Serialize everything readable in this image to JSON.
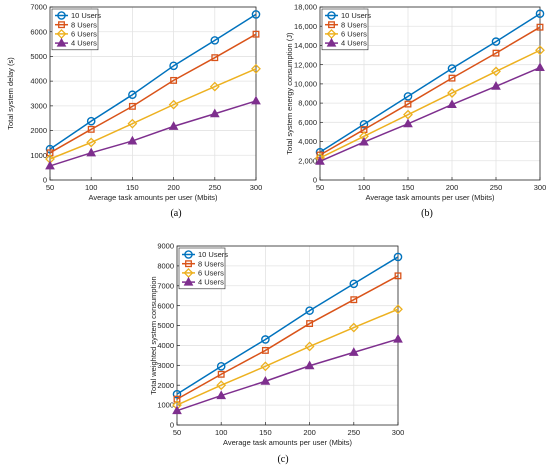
{
  "series_style": [
    {
      "color": "#0072BD",
      "marker": "circle"
    },
    {
      "color": "#D95319",
      "marker": "square"
    },
    {
      "color": "#EDB120",
      "marker": "diamond"
    },
    {
      "color": "#7E2F8E",
      "marker": "triangle"
    }
  ],
  "chart_data": [
    {
      "panel": "a",
      "caption": "(a)",
      "type": "line",
      "xlabel": "Average task amounts per user (Mbits)",
      "ylabel": "Total system delay (s)",
      "xlim": [
        50,
        300
      ],
      "ylim": [
        0,
        7000
      ],
      "xticks": [
        50,
        100,
        150,
        200,
        250,
        300
      ],
      "yticks": [
        0,
        1000,
        2000,
        3000,
        4000,
        5000,
        6000,
        7000
      ],
      "ytick_labels": [
        "0",
        "1000",
        "2000",
        "3000",
        "4000",
        "5000",
        "6000",
        "7000"
      ],
      "grid": true,
      "legend": "top-left",
      "x": [
        50,
        100,
        150,
        200,
        250,
        300
      ],
      "series": [
        {
          "name": "10 Users",
          "values": [
            1250,
            2380,
            3450,
            4620,
            5650,
            6700
          ]
        },
        {
          "name": "8 Users",
          "values": [
            1100,
            2050,
            2980,
            4030,
            4950,
            5900
          ]
        },
        {
          "name": "6 Users",
          "values": [
            850,
            1520,
            2280,
            3050,
            3780,
            4500
          ]
        },
        {
          "name": "4 Users",
          "values": [
            570,
            1100,
            1580,
            2170,
            2680,
            3200
          ]
        }
      ]
    },
    {
      "panel": "b",
      "caption": "(b)",
      "type": "line",
      "xlabel": "Average task amounts per user (Mbits)",
      "ylabel": "Total system energy consumption (J)",
      "xlim": [
        50,
        300
      ],
      "ylim": [
        0,
        18000
      ],
      "xticks": [
        50,
        100,
        150,
        200,
        250,
        300
      ],
      "yticks": [
        0,
        2000,
        4000,
        6000,
        8000,
        10000,
        12000,
        14000,
        16000,
        18000
      ],
      "ytick_labels": [
        "0",
        "2,000",
        "4,000",
        "6,000",
        "8,000",
        "10,000",
        "12,000",
        "14,000",
        "16,000",
        "18,000"
      ],
      "grid": true,
      "legend": "top-left",
      "x": [
        50,
        100,
        150,
        200,
        250,
        300
      ],
      "series": [
        {
          "name": "10 Users",
          "values": [
            2900,
            5800,
            8700,
            11600,
            14400,
            17300
          ]
        },
        {
          "name": "8 Users",
          "values": [
            2600,
            5250,
            7900,
            10600,
            13200,
            15900
          ]
        },
        {
          "name": "6 Users",
          "values": [
            2300,
            4550,
            6800,
            9050,
            11300,
            13500
          ]
        },
        {
          "name": "4 Users",
          "values": [
            1950,
            3950,
            5850,
            7850,
            9750,
            11700
          ]
        }
      ]
    },
    {
      "panel": "c",
      "caption": "(c)",
      "type": "line",
      "xlabel": "Average task amounts per user (Mbits)",
      "ylabel": "Total weighted system consumption",
      "xlim": [
        50,
        300
      ],
      "ylim": [
        0,
        9000
      ],
      "xticks": [
        50,
        100,
        150,
        200,
        250,
        300
      ],
      "yticks": [
        0,
        1000,
        2000,
        3000,
        4000,
        5000,
        6000,
        7000,
        8000,
        9000
      ],
      "ytick_labels": [
        "0",
        "1000",
        "2000",
        "3000",
        "4000",
        "5000",
        "6000",
        "7000",
        "8000",
        "9000"
      ],
      "grid": true,
      "legend": "top-left",
      "x": [
        50,
        100,
        150,
        200,
        250,
        300
      ],
      "series": [
        {
          "name": "10 Users",
          "values": [
            1550,
            2950,
            4300,
            5750,
            7100,
            8450
          ]
        },
        {
          "name": "8 Users",
          "values": [
            1300,
            2550,
            3750,
            5100,
            6300,
            7500
          ]
        },
        {
          "name": "6 Users",
          "values": [
            1000,
            2000,
            2950,
            3950,
            4900,
            5820
          ]
        },
        {
          "name": "4 Users",
          "values": [
            720,
            1480,
            2200,
            2980,
            3650,
            4320
          ]
        }
      ]
    }
  ]
}
